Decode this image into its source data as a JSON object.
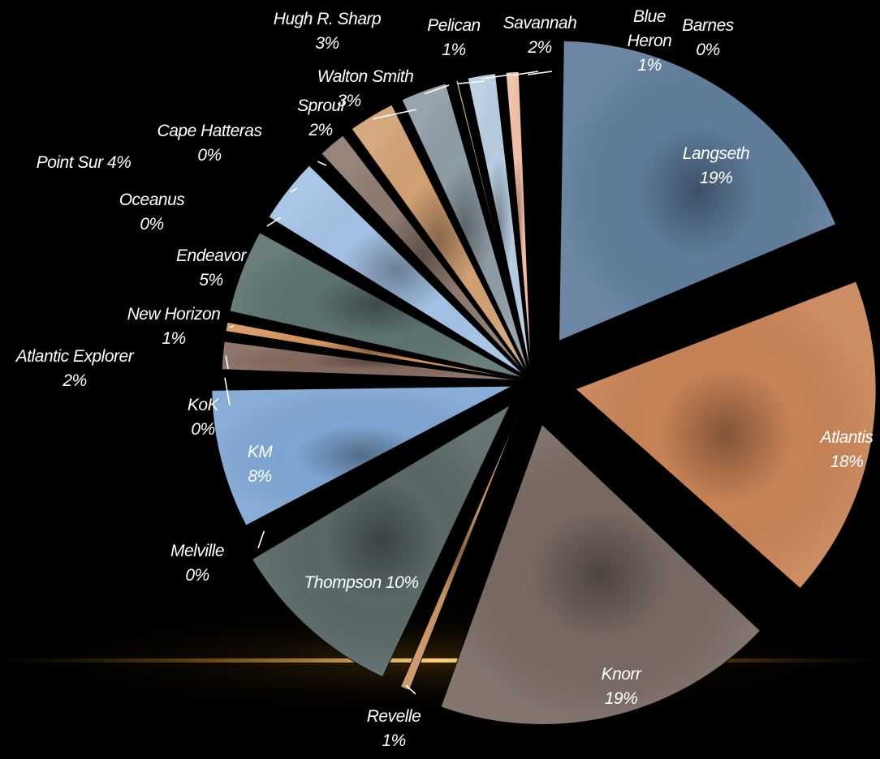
{
  "chart_data": {
    "type": "pie",
    "title": "",
    "slices": [
      {
        "label": "Langseth",
        "value": 19,
        "pct_text": "19%",
        "color": "#5f7c9c"
      },
      {
        "label": "Atlantis",
        "value": 18,
        "pct_text": "18%",
        "color": "#c88256"
      },
      {
        "label": "Knorr",
        "value": 19,
        "pct_text": "19%",
        "color": "#786962"
      },
      {
        "label": "Revelle",
        "value": 1,
        "pct_text": "1%",
        "color": "#c89464"
      },
      {
        "label": "Thompson 10%",
        "value": 10,
        "pct_text": "",
        "color": "#5a6868"
      },
      {
        "label": "Melville",
        "value": 0.4,
        "pct_text": "0%",
        "color": "#a08c7a"
      },
      {
        "label": "KM",
        "value": 8,
        "pct_text": "8%",
        "color": "#7ea6d2"
      },
      {
        "label": "KoK",
        "value": 0.3,
        "pct_text": "0%",
        "color": "#8c7c70"
      },
      {
        "label": "Atlantic Explorer",
        "value": 2,
        "pct_text": "2%",
        "color": "#846a60"
      },
      {
        "label": "New Horizon",
        "value": 1,
        "pct_text": "1%",
        "color": "#d4955e"
      },
      {
        "label": "Endeavor",
        "value": 5,
        "pct_text": "5%",
        "color": "#5e7272"
      },
      {
        "label": "Oceanus",
        "value": 0.3,
        "pct_text": "0%",
        "color": "#7c9aba"
      },
      {
        "label": "Point Sur 4%",
        "value": 4,
        "pct_text": "",
        "color": "#a4c2e6"
      },
      {
        "label": "Cape Hatteras",
        "value": 0.3,
        "pct_text": "0%",
        "color": "#7c8c92"
      },
      {
        "label": "Sproul",
        "value": 2,
        "pct_text": "2%",
        "color": "#8e7a70"
      },
      {
        "label": "Walton Smith",
        "value": 3,
        "pct_text": "3%",
        "color": "#d2a074"
      },
      {
        "label": "Hugh R. Sharp",
        "value": 3,
        "pct_text": "3%",
        "color": "#8e9ca6"
      },
      {
        "label": "Pelican",
        "value": 0.6,
        "pct_text": "1%",
        "color": "#c8b490"
      },
      {
        "label": "Savannah",
        "value": 2,
        "pct_text": "2%",
        "color": "#b8cce0"
      },
      {
        "label": "Blue Heron",
        "value": 1.2,
        "pct_text": "1%",
        "color": "#f2bfa6"
      },
      {
        "label": "Barnes",
        "value": 0.4,
        "pct_text": "0%",
        "color": "#b4b4b4"
      }
    ],
    "legend": "none",
    "label_style": "category name and percentage beside slices, with leader lines for small slices"
  }
}
